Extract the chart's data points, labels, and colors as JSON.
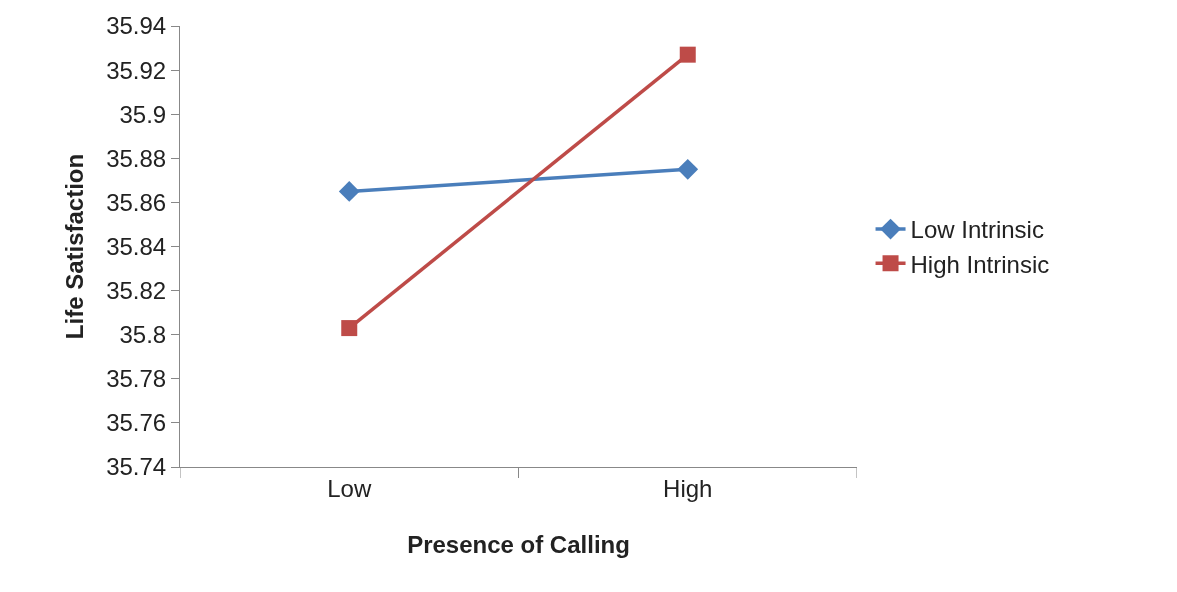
{
  "chart_data": {
    "type": "line",
    "xlabel": "Presence of Calling",
    "ylabel": "Life Satisfaction",
    "categories": [
      "Low",
      "High"
    ],
    "series": [
      {
        "name": "Low Intrinsic",
        "color": "#4a7ebb",
        "values": [
          35.865,
          35.875
        ],
        "marker": "diamond"
      },
      {
        "name": "High Intrinsic",
        "color": "#be4b48",
        "values": [
          35.803,
          35.927
        ],
        "marker": "square"
      }
    ],
    "ylim": [
      35.74,
      35.94
    ],
    "yticks": [
      35.74,
      35.76,
      35.78,
      35.8,
      35.82,
      35.84,
      35.86,
      35.88,
      35.9,
      35.92,
      35.94
    ],
    "legend": "right",
    "line_style": "solid"
  }
}
